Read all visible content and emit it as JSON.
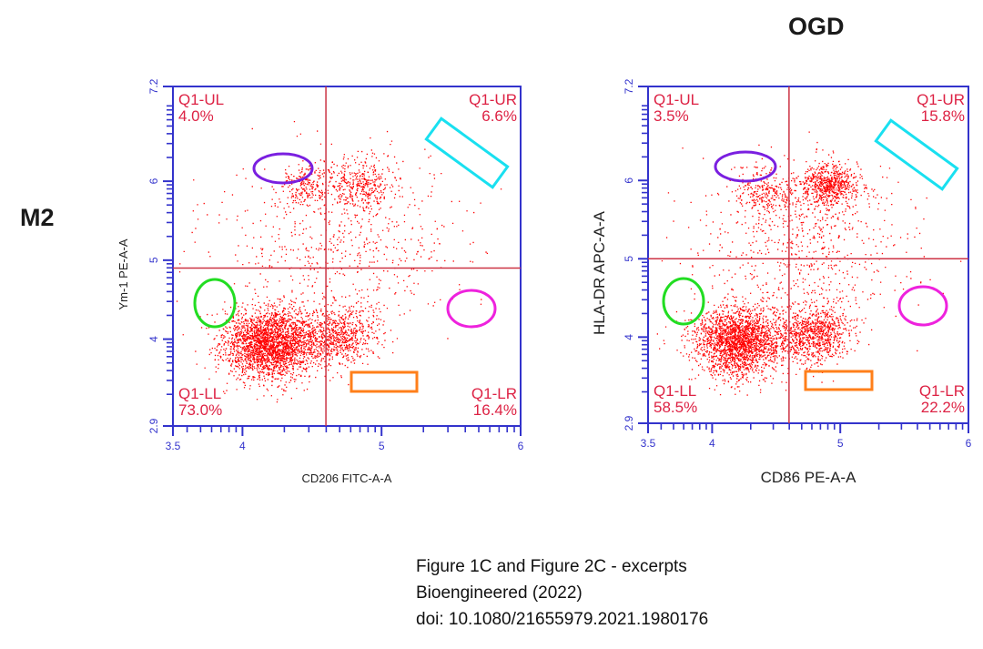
{
  "row_label": "M2",
  "condition_label": "OGD",
  "citation": {
    "line1": "Figure 1C and Figure 2C - excerpts",
    "line2": "Bioengineered (2022)",
    "line3": "doi: 10.1080/21655979.2021.1980176"
  },
  "colors": {
    "dots": "#ff0000",
    "frame": "#3333cc",
    "axis_labels": "#3333cc",
    "gate_lines": "#cc3344",
    "quadrant_text": "#dd2244",
    "annot_purple": "#7a1fe0",
    "annot_cyan": "#19e0f0",
    "annot_green": "#22dd22",
    "annot_magenta": "#ee22dd",
    "annot_orange": "#ff7f1a"
  },
  "chart_data": [
    {
      "type": "scatter",
      "xlabel": "CD206 FITC-A-A",
      "ylabel": "Ym-1 PE-A-A",
      "x_scale": "log",
      "y_scale": "log",
      "xlim": [
        3.5,
        6.0
      ],
      "ylim": [
        2.9,
        7.2
      ],
      "x_tick_labels": [
        "3.5",
        "4",
        "5",
        "6"
      ],
      "y_tick_labels": [
        "7.2",
        "6",
        "5",
        "4",
        "2.9"
      ],
      "gate": {
        "x": 4.6,
        "y": 4.9
      },
      "quadrants": [
        {
          "name": "Q1-UL",
          "percent": "4.0%"
        },
        {
          "name": "Q1-UR",
          "percent": "6.6%"
        },
        {
          "name": "Q1-LL",
          "percent": "73.0%"
        },
        {
          "name": "Q1-LR",
          "percent": "16.4%"
        }
      ],
      "clusters": [
        {
          "x": 4.2,
          "y": 3.95,
          "sx": 0.17,
          "sy": 0.22,
          "n": 2600
        },
        {
          "x": 4.7,
          "y": 4.05,
          "sx": 0.14,
          "sy": 0.18,
          "n": 700
        },
        {
          "x": 4.45,
          "y": 5.95,
          "sx": 0.09,
          "sy": 0.14,
          "n": 220
        },
        {
          "x": 4.85,
          "y": 5.95,
          "sx": 0.14,
          "sy": 0.16,
          "n": 380
        },
        {
          "x": 4.7,
          "y": 5.2,
          "sx": 0.42,
          "sy": 0.55,
          "n": 600
        }
      ]
    },
    {
      "type": "scatter",
      "xlabel": "CD86 PE-A-A",
      "ylabel": "HLA-DR APC-A-A",
      "x_scale": "log",
      "y_scale": "log",
      "xlim": [
        3.5,
        6.0
      ],
      "ylim": [
        2.9,
        7.2
      ],
      "x_tick_labels": [
        "3.5",
        "4",
        "5",
        "6"
      ],
      "y_tick_labels": [
        "7.2",
        "6",
        "5",
        "4",
        "2.9"
      ],
      "gate": {
        "x": 4.6,
        "y": 5.0
      },
      "quadrants": [
        {
          "name": "Q1-UL",
          "percent": "3.5%"
        },
        {
          "name": "Q1-UR",
          "percent": "15.8%"
        },
        {
          "name": "Q1-LL",
          "percent": "58.5%"
        },
        {
          "name": "Q1-LR",
          "percent": "22.2%"
        }
      ],
      "clusters": [
        {
          "x": 4.2,
          "y": 3.95,
          "sx": 0.17,
          "sy": 0.22,
          "n": 2200
        },
        {
          "x": 4.8,
          "y": 4.05,
          "sx": 0.14,
          "sy": 0.18,
          "n": 900
        },
        {
          "x": 4.9,
          "y": 5.95,
          "sx": 0.12,
          "sy": 0.14,
          "n": 700
        },
        {
          "x": 4.4,
          "y": 5.85,
          "sx": 0.12,
          "sy": 0.16,
          "n": 250
        },
        {
          "x": 4.7,
          "y": 5.2,
          "sx": 0.42,
          "sy": 0.55,
          "n": 700
        }
      ]
    }
  ]
}
